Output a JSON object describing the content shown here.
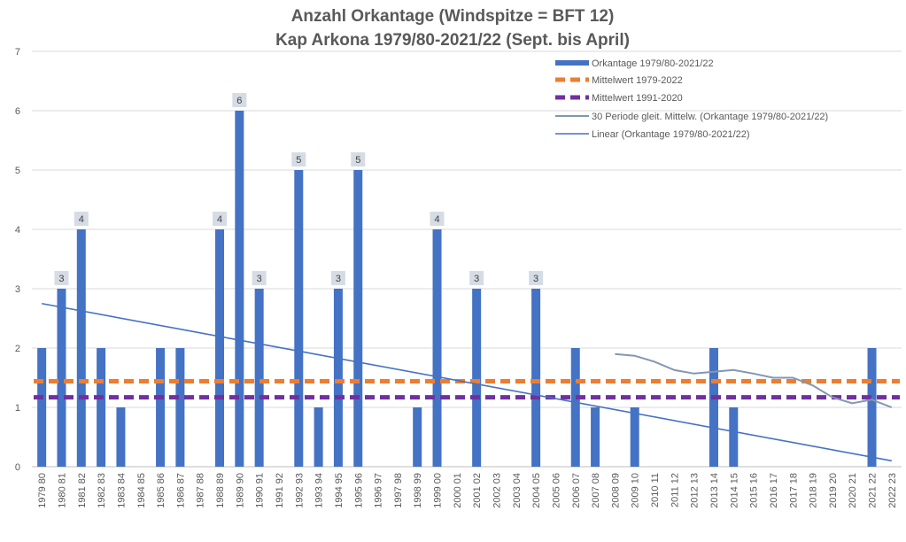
{
  "chart_data": {
    "type": "bar",
    "title": "Anzahl Orkantage (Windspitze = BFT 12)",
    "subtitle": "Kap Arkona 1979/80-2021/22 (Sept. bis April)",
    "categories": [
      "1979 80",
      "1980 81",
      "1981 82",
      "1982 83",
      "1983 84",
      "1984 85",
      "1985 86",
      "1986 87",
      "1987 88",
      "1988 89",
      "1989 90",
      "1990 91",
      "1991 92",
      "1992 93",
      "1993 94",
      "1994 95",
      "1995 96",
      "1996 97",
      "1997 98",
      "1998 99",
      "1999 00",
      "2000 01",
      "2001 02",
      "2002 03",
      "2003 04",
      "2004 05",
      "2005 06",
      "2006 07",
      "2007 08",
      "2008 09",
      "2009 10",
      "2010 11",
      "2011 12",
      "2012 13",
      "2013 14",
      "2014 15",
      "2015 16",
      "2016 17",
      "2017 18",
      "2018 19",
      "2019 20",
      "2020 21",
      "2021 22",
      "2022 23"
    ],
    "ylim": [
      0,
      7
    ],
    "yticks": [
      0,
      1,
      2,
      3,
      4,
      5,
      6,
      7
    ],
    "legend_position": "top-right",
    "series": [
      {
        "name": "Orkantage 1979/80-2021/22",
        "kind": "bar",
        "color": "#4472C4",
        "values": [
          2,
          3,
          4,
          2,
          1,
          0,
          2,
          2,
          0,
          4,
          6,
          3,
          0,
          5,
          1,
          3,
          5,
          0,
          0,
          1,
          4,
          0,
          3,
          0,
          0,
          3,
          0,
          2,
          1,
          0,
          1,
          0,
          0,
          0,
          2,
          1,
          0,
          0,
          0,
          0,
          0,
          0,
          2,
          null
        ]
      },
      {
        "name": "Mittelwert 1979-2022",
        "kind": "dashed-line",
        "color": "#ED7D31",
        "value": 1.44
      },
      {
        "name": "Mittelwert 1991-2020",
        "kind": "dashed-line",
        "color": "#7030A0",
        "value": 1.17
      },
      {
        "name": "30 Periode gleit. Mittelw. (Orkantage 1979/80-2021/22)",
        "kind": "line",
        "color": "#8497B0",
        "values": [
          null,
          null,
          null,
          null,
          null,
          null,
          null,
          null,
          null,
          null,
          null,
          null,
          null,
          null,
          null,
          null,
          null,
          null,
          null,
          null,
          null,
          null,
          null,
          null,
          null,
          null,
          null,
          null,
          null,
          1.9,
          1.87,
          1.77,
          1.63,
          1.57,
          1.6,
          1.63,
          1.57,
          1.5,
          1.5,
          1.37,
          1.17,
          1.07,
          1.13,
          1.0
        ]
      },
      {
        "name": "Linear (Orkantage 1979/80-2021/22)",
        "kind": "trend",
        "color": "#4472C4",
        "start": 2.75,
        "end": 0.1
      }
    ],
    "data_labels": [
      {
        "index": 1,
        "text": "3"
      },
      {
        "index": 2,
        "text": "4"
      },
      {
        "index": 9,
        "text": "4"
      },
      {
        "index": 10,
        "text": "6"
      },
      {
        "index": 11,
        "text": "3"
      },
      {
        "index": 13,
        "text": "5"
      },
      {
        "index": 15,
        "text": "3"
      },
      {
        "index": 16,
        "text": "5"
      },
      {
        "index": 20,
        "text": "4"
      },
      {
        "index": 22,
        "text": "3"
      },
      {
        "index": 25,
        "text": "3"
      }
    ]
  }
}
